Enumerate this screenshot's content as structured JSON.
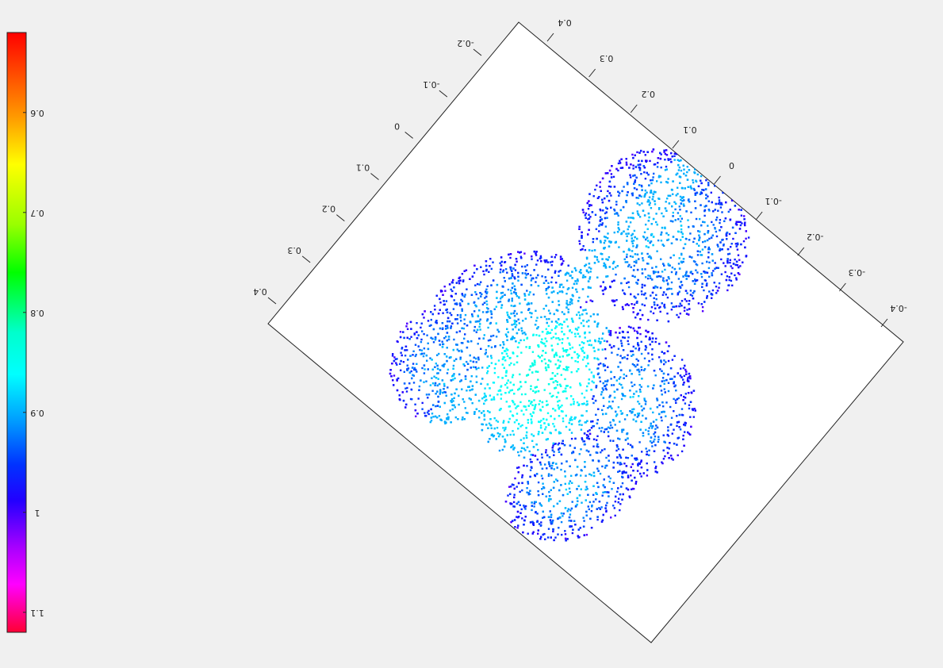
{
  "chart_data": {
    "type": "scatter",
    "title": "",
    "plot_type": "3d-point-cloud",
    "view": "rotated and upside-down",
    "grid": false,
    "colormap": "hsv-style (red at top, through yellow, green, cyan, blue, magenta, red at bottom)",
    "axes": [
      {
        "ticks": [
          "0.4",
          "0.3",
          "0.2",
          "0.1",
          "0",
          "-0.1",
          "-0.2",
          "-0.3",
          "-0.4"
        ],
        "range": [
          -0.4,
          0.4
        ]
      },
      {
        "ticks": [
          "0.4",
          "0.3",
          "0.2",
          "0.1",
          "0",
          "-0.1",
          "-0.2"
        ],
        "range": [
          -0.2,
          0.4
        ]
      }
    ],
    "colorbar": {
      "location": "left",
      "ticks": [
        "0.6",
        "0.7",
        "0.8",
        "0.9",
        "1",
        "1.1"
      ],
      "range": [
        0.52,
        1.12
      ]
    },
    "surface_value_range": [
      0.82,
      1.1
    ],
    "colors": {
      "background": "#f0f0f0",
      "plot_area": "#ffffff",
      "border": "#222222"
    }
  }
}
